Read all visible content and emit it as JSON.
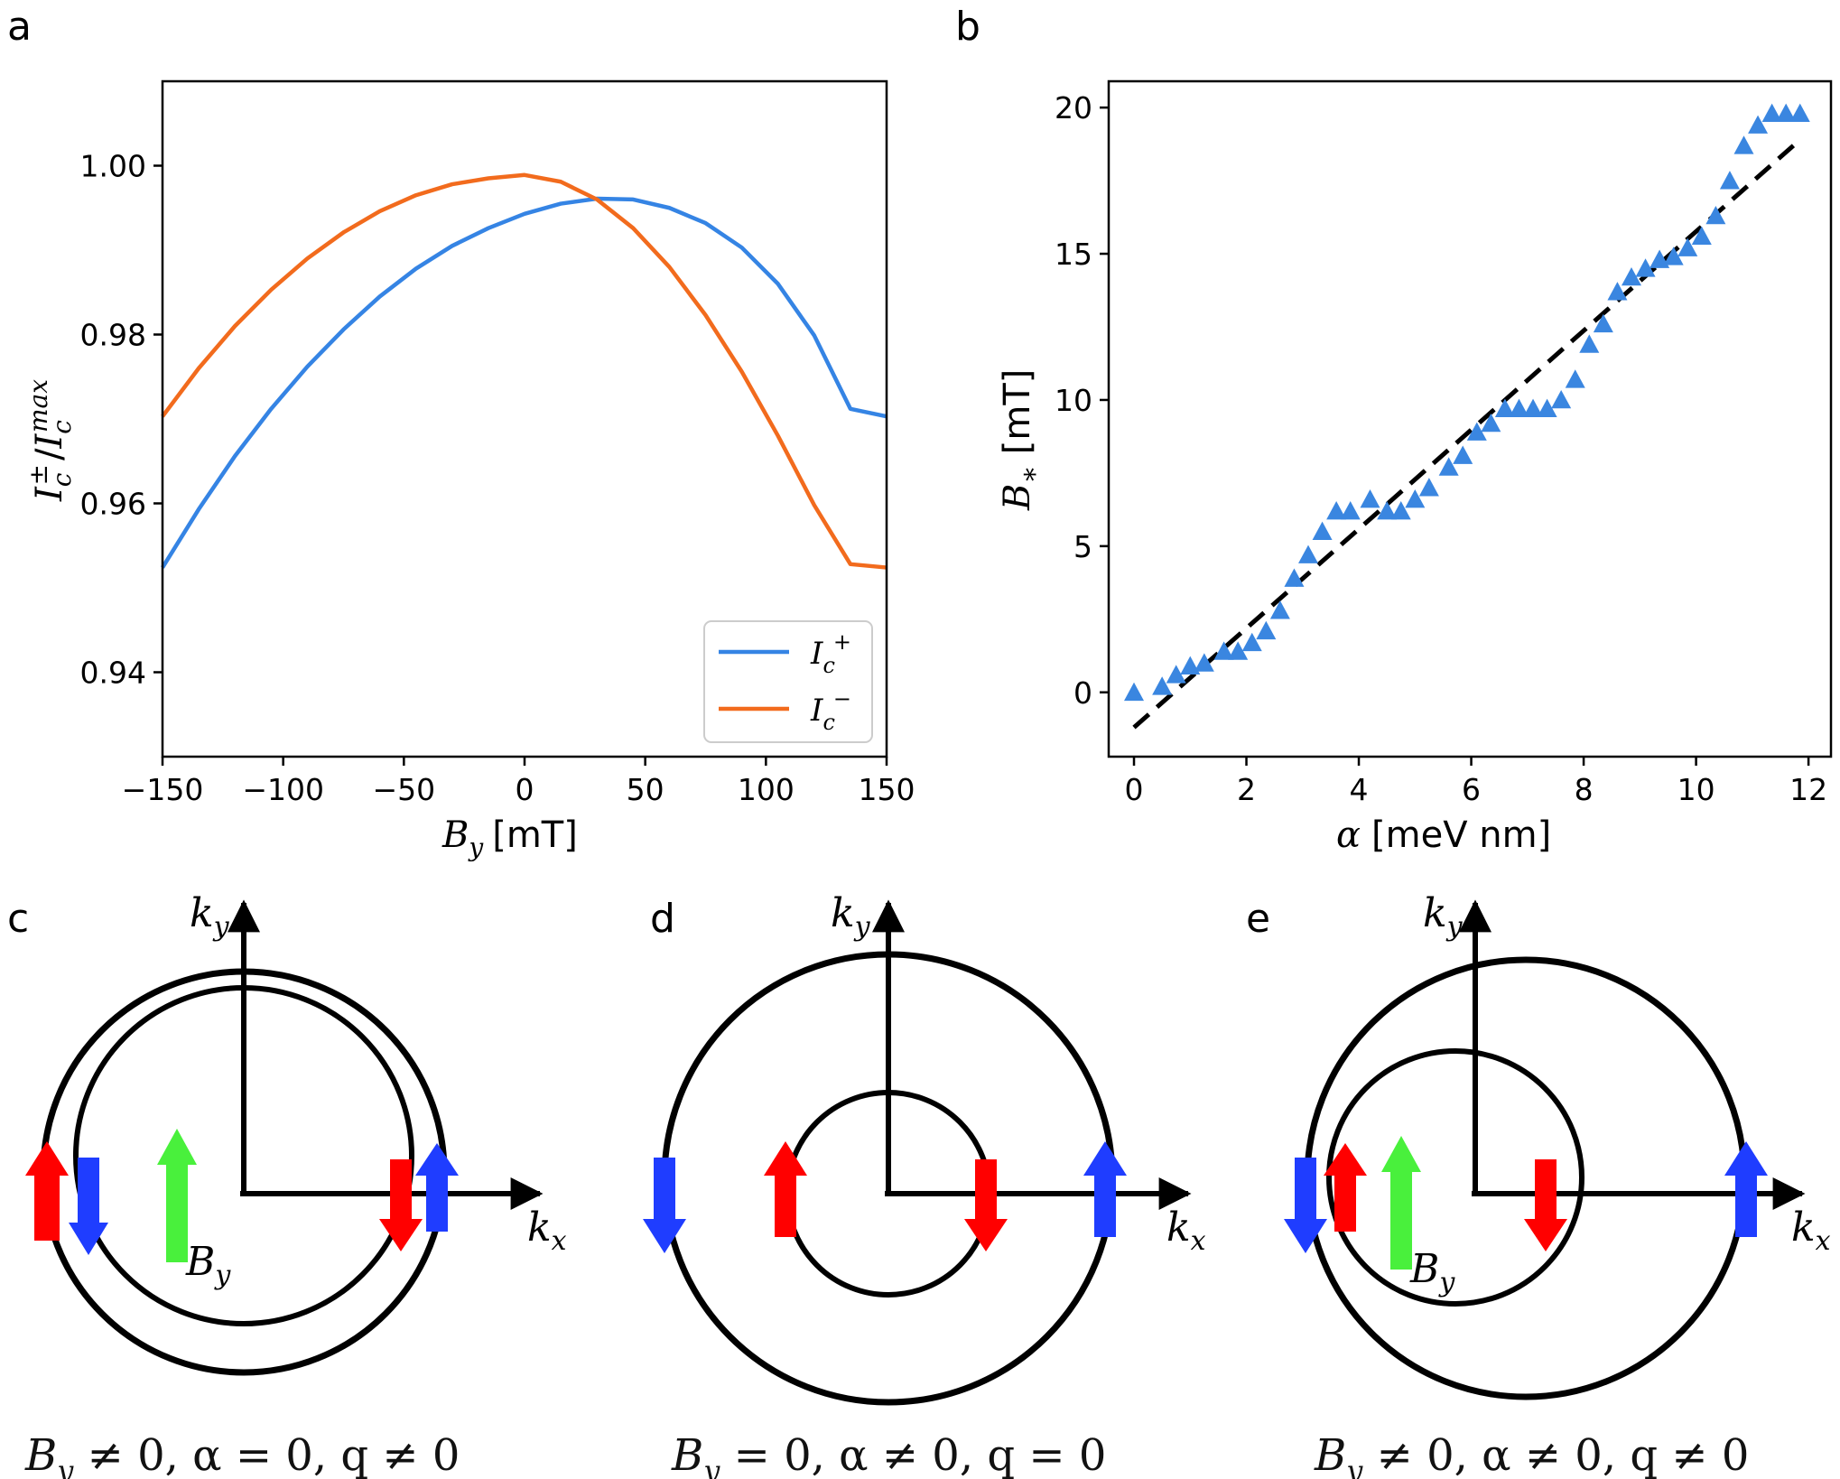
{
  "colors": {
    "blue_line": "#3584e4",
    "orange_line": "#f26b1d",
    "marker": "#3a86e0",
    "red_arrow": "#ff0000",
    "blue_arrow": "#1f3dff",
    "green_arrow": "#49f03c"
  },
  "panels": {
    "a": {
      "label": "a"
    },
    "b": {
      "label": "b"
    },
    "c": {
      "label": "c",
      "kx": "k",
      "kx_sub": "x",
      "ky": "k",
      "ky_sub": "y",
      "by": "B",
      "by_sub": "y",
      "caption": "B_y ≠ 0, α = 0, q ≠ 0"
    },
    "d": {
      "label": "d",
      "kx": "k",
      "kx_sub": "x",
      "ky": "k",
      "ky_sub": "y",
      "caption": "B_y = 0, α ≠ 0, q = 0"
    },
    "e": {
      "label": "e",
      "kx": "k",
      "kx_sub": "x",
      "ky": "k",
      "ky_sub": "y",
      "by": "B",
      "by_sub": "y",
      "caption": "B_y ≠ 0, α ≠ 0, q ≠ 0"
    }
  },
  "chart_data": [
    {
      "panel": "a",
      "type": "line",
      "xlabel": "B_y [mT]",
      "xlabel_main": "B",
      "xlabel_sub": "y",
      "xlabel_unit": "[mT]",
      "ylabel": "I_c^± / I_c^max",
      "xlim": [
        -150,
        150
      ],
      "ylim": [
        0.93,
        1.01
      ],
      "xticks": [
        -150,
        -100,
        -50,
        0,
        50,
        100,
        150
      ],
      "xtick_labels": [
        "−150",
        "−100",
        "−50",
        "0",
        "50",
        "100",
        "150"
      ],
      "yticks": [
        0.94,
        0.96,
        0.98,
        1.0
      ],
      "ytick_labels": [
        "0.94",
        "0.96",
        "0.98",
        "1.00"
      ],
      "x": [
        -150,
        -135,
        -120,
        -105,
        -90,
        -75,
        -60,
        -45,
        -30,
        -15,
        0,
        15,
        30,
        45,
        60,
        75,
        90,
        105,
        120,
        135,
        150
      ],
      "series": [
        {
          "name": "I_c^+",
          "legend_main": "I",
          "legend_sub": "c",
          "legend_sup": "+",
          "values": [
            0.9524,
            0.9593,
            0.9656,
            0.9712,
            0.9762,
            0.9806,
            0.9845,
            0.9878,
            0.9905,
            0.9926,
            0.9943,
            0.9955,
            0.9961,
            0.996,
            0.995,
            0.9932,
            0.9903,
            0.986,
            0.9799,
            0.9712,
            0.9703
          ]
        },
        {
          "name": "I_c^-",
          "legend_main": "I",
          "legend_sub": "c",
          "legend_sup": "−",
          "values": [
            0.9703,
            0.976,
            0.981,
            0.9853,
            0.989,
            0.9921,
            0.9946,
            0.9965,
            0.9978,
            0.9985,
            0.9989,
            0.9981,
            0.996,
            0.9926,
            0.988,
            0.9823,
            0.9756,
            0.968,
            0.9598,
            0.9528,
            0.9524
          ]
        }
      ],
      "legend_position": "lower-right"
    },
    {
      "panel": "b",
      "type": "scatter",
      "xlabel": "α [meV nm]",
      "xlabel_main": "α",
      "xlabel_unit": "[meV nm]",
      "ylabel": "B_* [mT]",
      "ylabel_main": "B",
      "ylabel_sub": "∗",
      "ylabel_unit": "[mT]",
      "xlim": [
        -0.45,
        12.4
      ],
      "ylim": [
        -2.2,
        20.9
      ],
      "xticks": [
        0,
        2,
        4,
        6,
        8,
        10,
        12
      ],
      "xtick_labels": [
        "0",
        "2",
        "4",
        "6",
        "8",
        "10",
        "12"
      ],
      "yticks": [
        0,
        5,
        10,
        15,
        20
      ],
      "ytick_labels": [
        "0",
        "5",
        "10",
        "15",
        "20"
      ],
      "points_x": [
        0.0,
        0.5,
        0.75,
        1.0,
        1.25,
        1.6,
        1.85,
        2.1,
        2.35,
        2.6,
        2.85,
        3.1,
        3.35,
        3.6,
        3.85,
        4.2,
        4.5,
        4.75,
        5.0,
        5.25,
        5.6,
        5.85,
        6.1,
        6.35,
        6.6,
        6.85,
        7.1,
        7.35,
        7.6,
        7.85,
        8.1,
        8.35,
        8.6,
        8.85,
        9.1,
        9.35,
        9.6,
        9.85,
        10.1,
        10.35,
        10.6,
        10.85,
        11.1,
        11.35,
        11.6,
        11.85
      ],
      "points_y": [
        0.0,
        0.2,
        0.6,
        0.9,
        1.0,
        1.4,
        1.4,
        1.7,
        2.1,
        2.8,
        3.9,
        4.7,
        5.5,
        6.2,
        6.2,
        6.6,
        6.2,
        6.2,
        6.6,
        7.0,
        7.7,
        8.1,
        8.9,
        9.2,
        9.7,
        9.7,
        9.7,
        9.7,
        10.0,
        10.7,
        11.9,
        12.6,
        13.7,
        14.2,
        14.5,
        14.8,
        14.9,
        15.2,
        15.6,
        16.3,
        17.5,
        18.7,
        19.4,
        19.8,
        19.8,
        19.8
      ],
      "fit_line": {
        "x": [
          0.0,
          11.85
        ],
        "y": [
          -1.2,
          18.9
        ],
        "style": "dashed"
      }
    }
  ]
}
